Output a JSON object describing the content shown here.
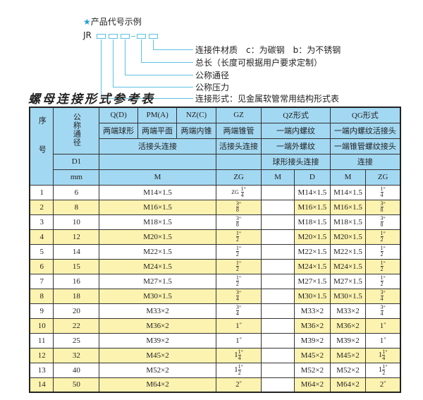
{
  "code_example": {
    "heading": "产品代号示例",
    "prefix": "JR",
    "labels": [
      "连接件材质　c：为碳钢　b：为不锈钢",
      "总长（长度可根据用户要求定制）",
      "公称通径",
      "公称压力",
      "连接形式：见金属软管常用结构形式表"
    ]
  },
  "title": "螺母连接形式参考表",
  "header": {
    "seq": "序号",
    "nominal": "公称通径",
    "d1": "D1",
    "mm": "mm",
    "types": [
      "Q(D)",
      "PM(A)",
      "NZ(C)",
      "GZ",
      "QZ形式",
      "QG形式"
    ],
    "shapes": [
      "两端球形",
      "两端平面",
      "两端内锥",
      "两端锥管",
      "一端内螺纹",
      "一端内螺纹活接头"
    ],
    "conn": [
      "活接头连接",
      "活接头连接",
      "一端外螺纹",
      "一端锥管螺纹接头"
    ],
    "conn2": [
      "球形接头连接",
      "连接"
    ],
    "units": [
      "M",
      "ZG",
      "M",
      "D",
      "M",
      "ZG"
    ]
  },
  "rows": [
    {
      "n": "1",
      "dn": "6",
      "m": "M14×1.5",
      "zg": {
        "pre": "ZG",
        "w": "",
        "num": "1",
        "den": "4"
      },
      "d": "M14×1.5",
      "qm": "M14×1.5",
      "qzg": {
        "pre": "",
        "w": "",
        "num": "1",
        "den": "4"
      }
    },
    {
      "n": "2",
      "dn": "8",
      "m": "M16×1.5",
      "zg": {
        "pre": "",
        "w": "",
        "num": "3",
        "den": "8"
      },
      "d": "M16×1.5",
      "qm": "M16×1.5",
      "qzg": {
        "pre": "",
        "w": "",
        "num": "3",
        "den": "8"
      }
    },
    {
      "n": "3",
      "dn": "10",
      "m": "M18×1.5",
      "zg": {
        "pre": "",
        "w": "",
        "num": "3",
        "den": "8"
      },
      "d": "M18×1.5",
      "qm": "M18×1.5",
      "qzg": {
        "pre": "",
        "w": "",
        "num": "3",
        "den": "8"
      }
    },
    {
      "n": "4",
      "dn": "12",
      "m": "M20×1.5",
      "zg": {
        "pre": "",
        "w": "",
        "num": "1",
        "den": "2"
      },
      "d": "M20×1.5",
      "qm": "M20×1.5",
      "qzg": {
        "pre": "",
        "w": "",
        "num": "1",
        "den": "2"
      }
    },
    {
      "n": "5",
      "dn": "14",
      "m": "M22×1.5",
      "zg": {
        "pre": "",
        "w": "",
        "num": "1",
        "den": "2"
      },
      "d": "M22×1.5",
      "qm": "M22×1.5",
      "qzg": {
        "pre": "",
        "w": "",
        "num": "1",
        "den": "2"
      }
    },
    {
      "n": "6",
      "dn": "15",
      "m": "M24×1.5",
      "zg": {
        "pre": "",
        "w": "",
        "num": "1",
        "den": "2"
      },
      "d": "M24×1.5",
      "qm": "M24×1.5",
      "qzg": {
        "pre": "",
        "w": "",
        "num": "1",
        "den": "2"
      }
    },
    {
      "n": "7",
      "dn": "16",
      "m": "M27×1.5",
      "zg": {
        "pre": "",
        "w": "",
        "num": "1",
        "den": "2"
      },
      "d": "M27×1.5",
      "qm": "M27×1.5",
      "qzg": {
        "pre": "",
        "w": "",
        "num": "1",
        "den": "2"
      }
    },
    {
      "n": "8",
      "dn": "18",
      "m": "M30×1.5",
      "zg": {
        "pre": "",
        "w": "",
        "num": "3",
        "den": "4"
      },
      "d": "M30×1.5",
      "qm": "M30×1.5",
      "qzg": {
        "pre": "",
        "w": "",
        "num": "3",
        "den": "4"
      }
    },
    {
      "n": "9",
      "dn": "20",
      "m": "M33×2",
      "zg": {
        "pre": "",
        "w": "",
        "num": "3",
        "den": "4"
      },
      "d": "M33×2",
      "qm": "M33×2",
      "qzg": {
        "pre": "",
        "w": "",
        "num": "3",
        "den": "4"
      }
    },
    {
      "n": "10",
      "dn": "22",
      "m": "M36×2",
      "zg": {
        "pre": "",
        "w": "1",
        "num": "",
        "den": ""
      },
      "d": "M36×2",
      "qm": "M36×2",
      "qzg": {
        "pre": "",
        "w": "1",
        "num": "",
        "den": ""
      }
    },
    {
      "n": "11",
      "dn": "25",
      "m": "M39×2",
      "zg": {
        "pre": "",
        "w": "1",
        "num": "",
        "den": ""
      },
      "d": "M39×2",
      "qm": "M39×2",
      "qzg": {
        "pre": "",
        "w": "1",
        "num": "",
        "den": ""
      }
    },
    {
      "n": "12",
      "dn": "32",
      "m": "M45×2",
      "zg": {
        "pre": "",
        "w": "1",
        "num": "1",
        "den": "4"
      },
      "d": "M45×2",
      "qm": "M45×2",
      "qzg": {
        "pre": "",
        "w": "1",
        "num": "1",
        "den": "4"
      }
    },
    {
      "n": "13",
      "dn": "40",
      "m": "M52×2",
      "zg": {
        "pre": "",
        "w": "1",
        "num": "1",
        "den": "2"
      },
      "d": "M52×2",
      "qm": "M52×2",
      "qzg": {
        "pre": "",
        "w": "1",
        "num": "1",
        "den": "2"
      }
    },
    {
      "n": "14",
      "dn": "50",
      "m": "M64×2",
      "zg": {
        "pre": "",
        "w": "2",
        "num": "",
        "den": ""
      },
      "d": "M64×2",
      "qm": "M64×2",
      "qzg": {
        "pre": "",
        "w": "2",
        "num": "",
        "den": ""
      }
    }
  ],
  "colors": {
    "header_bg": "#a3d8f2",
    "alt_row": "#fdf3b0",
    "accent": "#1fa0d8"
  }
}
